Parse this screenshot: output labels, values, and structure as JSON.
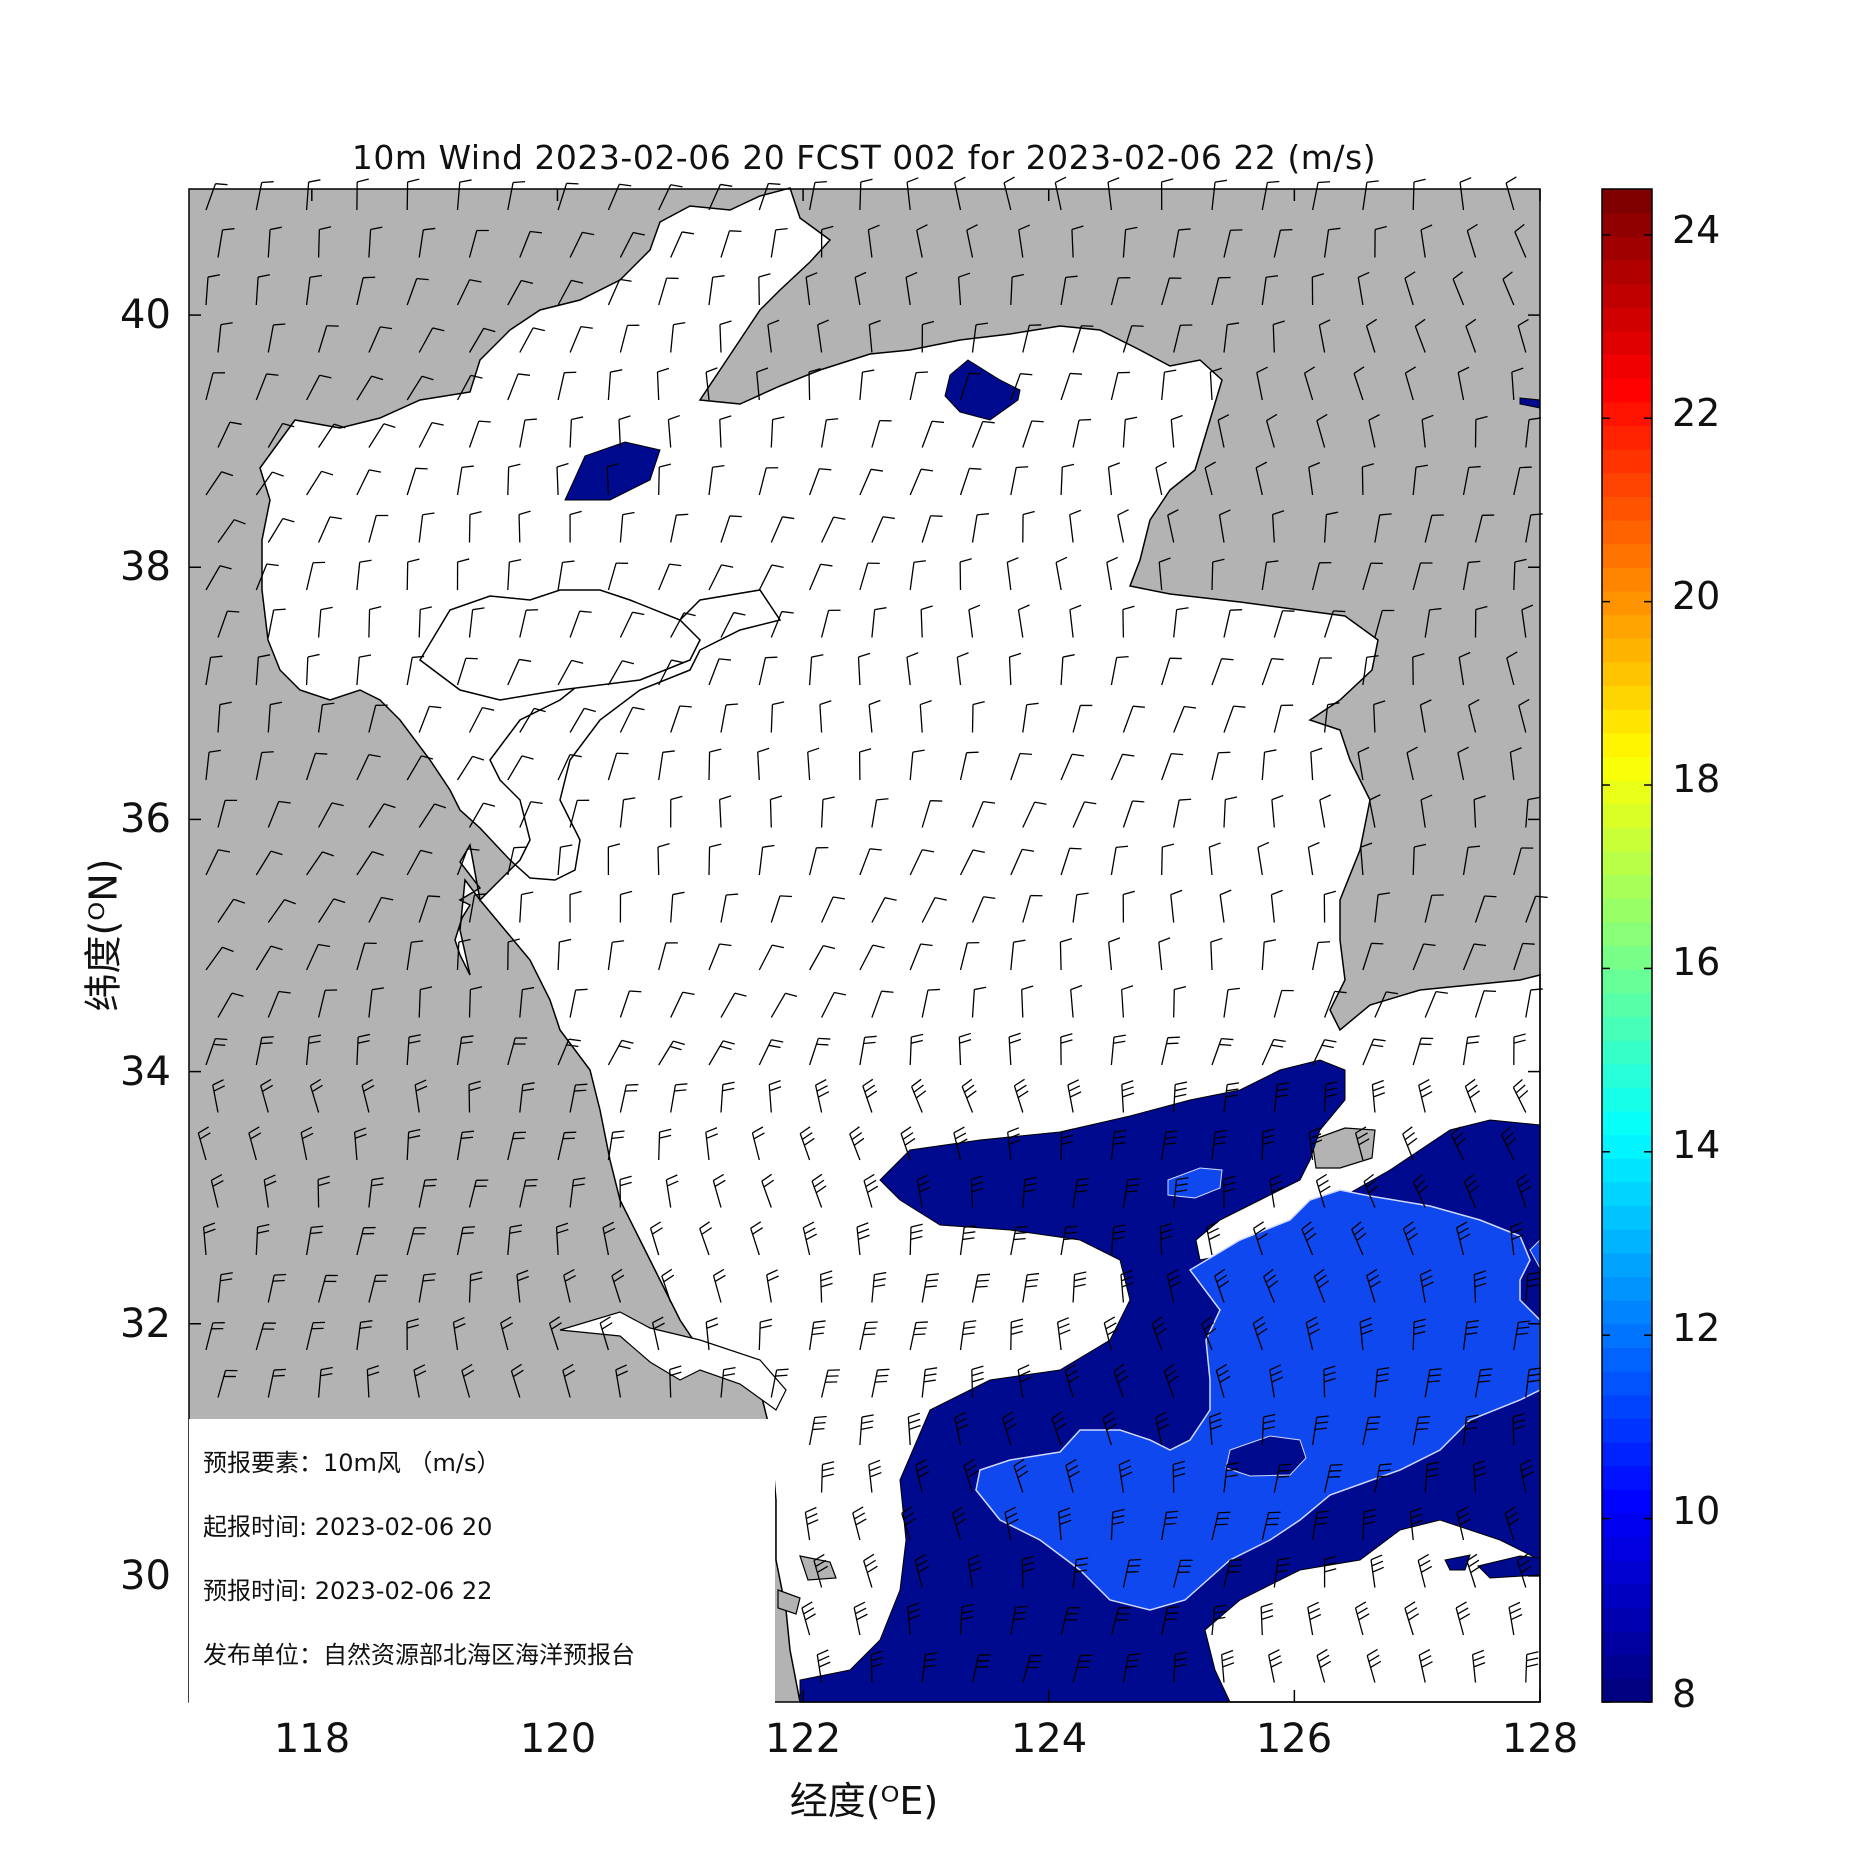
{
  "map": {
    "title": "10m Wind 2023-02-06 20 FCST 002 for 2023-02-06 22 (m/s)",
    "xlabel": "经度(ᴼE)",
    "ylabel": "纬度(ᴼN)",
    "lon_range": [
      117,
      128
    ],
    "lat_range": [
      29,
      41
    ],
    "x_ticks": [
      "118",
      "120",
      "122",
      "124",
      "126",
      "128"
    ],
    "y_ticks": [
      "30",
      "32",
      "34",
      "36",
      "38",
      "40"
    ],
    "land_color": "#b3b3b3",
    "sea_color": "#ffffff",
    "contour_fill_colors": {
      "8-10": "#000a8f",
      "10-12": "#1048f0"
    }
  },
  "colorbar": {
    "min": 8,
    "max": 24.5,
    "ticks": [
      "8",
      "10",
      "12",
      "14",
      "16",
      "18",
      "20",
      "22",
      "24"
    ],
    "colormap": "jet"
  },
  "info": {
    "element": "预报要素：10m风 （m/s）",
    "issue_time": "起报时间: 2023-02-06 20",
    "valid_time": "预报时间: 2023-02-06 22",
    "publisher": "发布单位：自然资源部北海区海洋预报台"
  }
}
